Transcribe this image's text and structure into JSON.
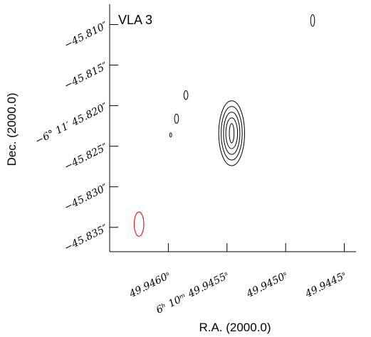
{
  "chart_data": {
    "type": "contour",
    "title": "VLA 3",
    "xlabel": "R.A. (2000.0)",
    "ylabel": "Dec. (2000.0)",
    "x_ticks": [
      {
        "value": 49.946,
        "label": "49.9460ˢ"
      },
      {
        "value": 49.9455,
        "label": "6ʰ 10ᵐ 49.9455ˢ"
      },
      {
        "value": 49.945,
        "label": "49.9450ˢ"
      },
      {
        "value": 49.9445,
        "label": "49.9445ˢ"
      }
    ],
    "y_ticks": [
      {
        "value": -45.81,
        "label": "−45.810″"
      },
      {
        "value": -45.815,
        "label": "−45.815″"
      },
      {
        "value": -45.82,
        "label": "−6° 11′ 45.820″"
      },
      {
        "value": -45.825,
        "label": "−45.825″"
      },
      {
        "value": -45.83,
        "label": "−45.830″"
      },
      {
        "value": -45.835,
        "label": "−45.835″"
      }
    ],
    "x_range_seconds": [
      49.9465,
      49.9444
    ],
    "y_range_arcsec": [
      -45.8075,
      -45.838
    ],
    "contour_sources": [
      {
        "ra": 49.94546,
        "dec": -45.8234,
        "contours": [
          [
            0.00011,
            0.004
          ],
          [
            9e-05,
            0.0033
          ],
          [
            7e-05,
            0.0026
          ],
          [
            5e-05,
            0.0019
          ],
          [
            2e-05,
            0.0012
          ]
        ]
      },
      {
        "ra": 49.94585,
        "dec": -45.8187,
        "contours": [
          [
            1.7e-05,
            0.00055
          ]
        ]
      },
      {
        "ra": 49.94593,
        "dec": -45.8216,
        "contours": [
          [
            1.7e-05,
            0.00058
          ]
        ]
      },
      {
        "ra": 49.94598,
        "dec": -45.8236,
        "contours": [
          [
            9e-06,
            0.00025
          ]
        ]
      },
      {
        "ra": 49.94477,
        "dec": -45.8095,
        "contours": [
          [
            1.7e-05,
            0.00072
          ]
        ]
      }
    ],
    "beam": {
      "ra": 49.94625,
      "dec": -45.8346,
      "half_width_sec": 4.1e-05,
      "half_height_arcsec": 0.0015,
      "color": "#e02020"
    },
    "contour_color": "#000000",
    "grid": false
  }
}
